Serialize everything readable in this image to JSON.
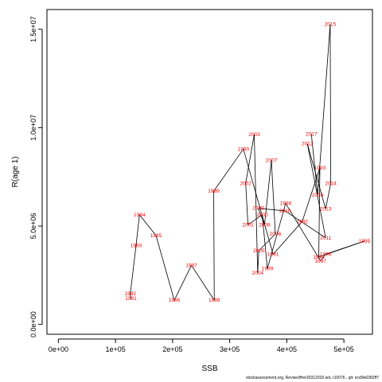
{
  "chart_data": {
    "type": "line",
    "title": "",
    "xlabel": "SSB",
    "ylabel": "R(age 1)",
    "xlim": [
      -20000,
      550000
    ],
    "ylim": [
      -500000,
      16000000
    ],
    "xticks": [
      0,
      100000,
      200000,
      300000,
      400000,
      500000
    ],
    "xtick_labels": [
      "0e+00",
      "1e+05",
      "2e+05",
      "3e+05",
      "4e+05",
      "5e+05"
    ],
    "yticks": [
      0,
      5000000,
      10000000,
      15000000
    ],
    "ytick_labels": [
      "0.0e+00",
      "5.0e+06",
      "1.0e+07",
      "1.5e+07"
    ],
    "grid": false,
    "legend": "none",
    "line_color": "#000000",
    "label_color": "#ff0000",
    "points": [
      {
        "year": "1981",
        "x": 127000,
        "y": 1310000
      },
      {
        "year": "1982",
        "x": 126000,
        "y": 1570000
      },
      {
        "year": "1983",
        "x": 136000,
        "y": 4000000
      },
      {
        "year": "1984",
        "x": 142000,
        "y": 5570000
      },
      {
        "year": "1985",
        "x": 171000,
        "y": 4520000
      },
      {
        "year": "1986",
        "x": 203000,
        "y": 1230000
      },
      {
        "year": "1987",
        "x": 233000,
        "y": 3000000
      },
      {
        "year": "1988",
        "x": 273000,
        "y": 1230000
      },
      {
        "year": "1989",
        "x": 272000,
        "y": 6770000
      },
      {
        "year": "1990",
        "x": 324000,
        "y": 8910000
      },
      {
        "year": "1991",
        "x": 376000,
        "y": 3560000
      },
      {
        "year": "1992",
        "x": 427000,
        "y": 5230000
      },
      {
        "year": "1993",
        "x": 458000,
        "y": 7960000
      },
      {
        "year": "1994",
        "x": 456000,
        "y": 3430000
      },
      {
        "year": "1995",
        "x": 536000,
        "y": 4230000
      },
      {
        "year": "1996",
        "x": 468000,
        "y": 3570000
      },
      {
        "year": "1997",
        "x": 459000,
        "y": 3230000
      },
      {
        "year": "1998",
        "x": 398000,
        "y": 6150000
      },
      {
        "year": "1999",
        "x": 366000,
        "y": 2830000
      },
      {
        "year": "2000",
        "x": 357000,
        "y": 5570000
      },
      {
        "year": "2001",
        "x": 332000,
        "y": 5070000
      },
      {
        "year": "2002",
        "x": 328000,
        "y": 7170000
      },
      {
        "year": "2003",
        "x": 343000,
        "y": 9660000
      },
      {
        "year": "2004",
        "x": 349000,
        "y": 2620000
      },
      {
        "year": "2005",
        "x": 351000,
        "y": 3740000
      },
      {
        "year": "2006",
        "x": 380000,
        "y": 4600000
      },
      {
        "year": "2007",
        "x": 373000,
        "y": 8330000
      },
      {
        "year": "2008",
        "x": 361000,
        "y": 5070000
      },
      {
        "year": "2009",
        "x": 350000,
        "y": 5900000
      },
      {
        "year": "2010",
        "x": 397000,
        "y": 5770000
      },
      {
        "year": "2011",
        "x": 468000,
        "y": 4400000
      },
      {
        "year": "2012",
        "x": 436000,
        "y": 9180000
      },
      {
        "year": "2013",
        "x": 468000,
        "y": 5870000
      },
      {
        "year": "2014",
        "x": 477000,
        "y": 7170000
      },
      {
        "year": "2015",
        "x": 476000,
        "y": 15250000
      },
      {
        "year": "2016",
        "x": 454000,
        "y": 6580000
      },
      {
        "year": "2017",
        "x": 443000,
        "y": 9680000
      }
    ]
  },
  "footer": "stockassessment.org, RevisedHer30312018 anL r10076 , git: ecd9e6382ff7"
}
